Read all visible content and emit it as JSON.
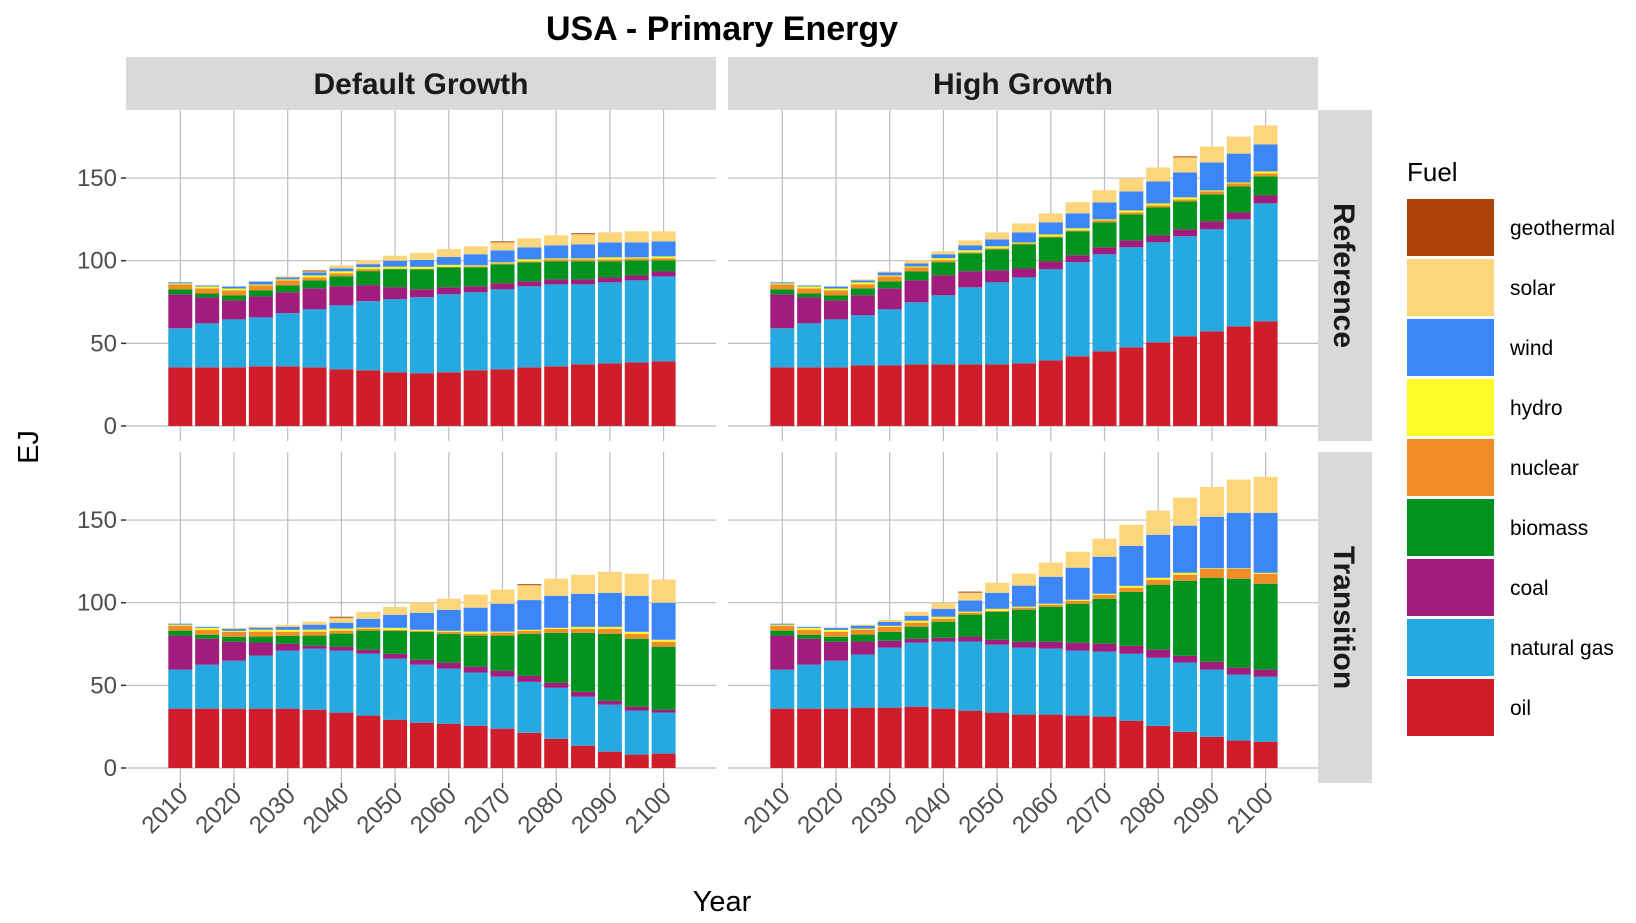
{
  "chart_data": {
    "type": "bar",
    "stacked": true,
    "title": "USA - Primary Energy",
    "xlabel": "Year",
    "ylabel": "EJ",
    "ylim": [
      0,
      190
    ],
    "yticks": [
      0,
      50,
      100,
      150
    ],
    "xticks": [
      2010,
      2020,
      2030,
      2040,
      2050,
      2060,
      2070,
      2080,
      2090,
      2100
    ],
    "grid": true,
    "legend": {
      "title": "Fuel",
      "position": "right",
      "entries": [
        {
          "key": "geothermal",
          "label": "geothermal",
          "color": "#ad440c"
        },
        {
          "key": "solar",
          "label": "solar",
          "color": "#fdd67b"
        },
        {
          "key": "wind",
          "label": "wind",
          "color": "#3d86f8"
        },
        {
          "key": "hydro",
          "label": "hydro",
          "color": "#fdfa28"
        },
        {
          "key": "nuclear",
          "label": "nuclear",
          "color": "#ef8e27"
        },
        {
          "key": "biomass",
          "label": "biomass",
          "color": "#00931d"
        },
        {
          "key": "coal",
          "label": "coal",
          "color": "#a11c7c"
        },
        {
          "key": "natural_gas",
          "label": "natural gas",
          "color": "#25a9e0"
        },
        {
          "key": "oil",
          "label": "oil",
          "color": "#cf1d2b"
        }
      ]
    },
    "stack_order_bottom_to_top": [
      "oil",
      "natural_gas",
      "coal",
      "biomass",
      "nuclear",
      "hydro",
      "wind",
      "solar",
      "geothermal"
    ],
    "columns": [
      "Default Growth",
      "High Growth"
    ],
    "rows": [
      "Reference",
      "Transition"
    ],
    "x": [
      2010,
      2015,
      2020,
      2025,
      2030,
      2035,
      2040,
      2045,
      2050,
      2055,
      2060,
      2065,
      2070,
      2075,
      2080,
      2085,
      2090,
      2095,
      2100
    ],
    "panels": [
      {
        "column": "Default Growth",
        "row": "Reference",
        "series": {
          "oil": [
            35.5,
            35.5,
            35.5,
            36.1,
            36.1,
            35.5,
            34.3,
            33.7,
            32.5,
            31.9,
            32.5,
            33.7,
            34.3,
            35.5,
            36.1,
            37.3,
            37.9,
            38.5,
            39.1
          ],
          "natural_gas": [
            23.6,
            26.6,
            29.0,
            29.6,
            32.1,
            35.1,
            38.7,
            41.8,
            44.2,
            46.0,
            47.2,
            47.2,
            48.4,
            49.0,
            49.6,
            48.4,
            49.0,
            49.6,
            51.4
          ],
          "coal": [
            20.6,
            15.7,
            11.5,
            12.7,
            12.7,
            12.7,
            11.5,
            9.7,
            7.3,
            4.8,
            4.2,
            3.6,
            3.6,
            3.0,
            3.0,
            3.0,
            3.0,
            3.0,
            3.0
          ],
          "biomass": [
            3.0,
            2.4,
            3.0,
            3.6,
            4.2,
            4.8,
            6.1,
            8.5,
            10.9,
            12.1,
            12.1,
            11.5,
            11.5,
            11.5,
            10.9,
            10.9,
            9.7,
            9.1,
            6.7
          ],
          "nuclear": [
            3.0,
            3.0,
            3.0,
            3.0,
            3.0,
            1.8,
            1.8,
            1.2,
            0.3,
            0.3,
            0.3,
            0.6,
            0.6,
            0.6,
            1.2,
            1.2,
            1.2,
            1.2,
            1.2
          ],
          "hydro": [
            0.6,
            1.2,
            1.2,
            0.6,
            0.6,
            1.2,
            1.2,
            1.2,
            1.2,
            1.2,
            1.2,
            0.6,
            0.6,
            1.2,
            0.6,
            0.6,
            1.2,
            0.6,
            1.2
          ],
          "wind": [
            0.6,
            0.6,
            1.2,
            1.8,
            1.2,
            1.8,
            1.8,
            1.8,
            3.6,
            4.2,
            4.8,
            6.7,
            7.3,
            7.3,
            7.9,
            8.5,
            9.1,
            9.1,
            9.1
          ],
          "solar": [
            0.0,
            0.0,
            0.0,
            0.0,
            0.6,
            0.6,
            1.8,
            2.4,
            3.0,
            4.2,
            4.8,
            4.8,
            4.8,
            5.4,
            6.1,
            6.1,
            6.1,
            6.7,
            6.1
          ],
          "geothermal": [
            0,
            0,
            0,
            0,
            0,
            0.6,
            0,
            0,
            0,
            0,
            0,
            0,
            0.6,
            0,
            0,
            0.6,
            0,
            0,
            0
          ]
        }
      },
      {
        "column": "High Growth",
        "row": "Reference",
        "series": {
          "oil": [
            35.5,
            35.5,
            35.5,
            36.7,
            36.7,
            37.3,
            37.3,
            37.3,
            37.3,
            37.9,
            39.7,
            42.2,
            45.2,
            47.6,
            50.6,
            54.3,
            57.3,
            60.3,
            63.3
          ],
          "natural_gas": [
            23.6,
            26.6,
            29.0,
            30.3,
            33.9,
            37.5,
            41.8,
            46.6,
            49.6,
            52.0,
            55.1,
            56.9,
            58.7,
            60.5,
            60.5,
            60.5,
            61.7,
            64.7,
            71.4
          ],
          "coal": [
            20.6,
            15.7,
            11.5,
            12.1,
            12.7,
            13.3,
            12.1,
            9.7,
            7.3,
            5.4,
            4.8,
            4.2,
            4.2,
            4.2,
            4.2,
            4.2,
            4.8,
            4.2,
            4.8
          ],
          "biomass": [
            3.0,
            2.4,
            3.0,
            4.2,
            4.2,
            5.4,
            7.9,
            10.9,
            12.7,
            14.5,
            14.5,
            14.5,
            15.1,
            15.7,
            16.9,
            16.9,
            16.3,
            15.7,
            11.5
          ],
          "nuclear": [
            3.0,
            3.0,
            3.0,
            2.4,
            3.0,
            2.4,
            1.2,
            0.6,
            0.6,
            0.6,
            0.6,
            0.6,
            1.2,
            1.2,
            1.2,
            1.2,
            1.8,
            1.8,
            1.8
          ],
          "hydro": [
            0.6,
            1.2,
            1.2,
            1.2,
            0.6,
            0.6,
            1.2,
            1.2,
            1.2,
            0.6,
            1.2,
            1.2,
            0.6,
            1.2,
            1.2,
            1.2,
            0.6,
            0.6,
            1.2
          ],
          "wind": [
            0.6,
            0.6,
            1.2,
            1.2,
            1.8,
            1.8,
            2.4,
            3.0,
            4.2,
            6.1,
            7.3,
            9.1,
            10.3,
            11.5,
            13.3,
            15.1,
            16.9,
            17.5,
            16.3
          ],
          "solar": [
            0.0,
            0.0,
            0.0,
            0.6,
            0.6,
            1.8,
            1.8,
            3.0,
            4.2,
            5.4,
            5.4,
            6.7,
            7.3,
            7.9,
            8.5,
            9.1,
            9.7,
            10.3,
            11.5
          ],
          "geothermal": [
            0,
            0,
            0,
            0,
            0,
            0,
            0,
            0,
            0,
            0,
            0,
            0,
            0,
            0,
            0,
            0.6,
            0,
            0,
            0
          ]
        }
      },
      {
        "column": "Default Growth",
        "row": "Transition",
        "series": {
          "oil": [
            35.9,
            35.9,
            35.9,
            35.9,
            35.9,
            35.3,
            33.5,
            31.7,
            29.2,
            27.4,
            26.8,
            25.6,
            23.8,
            21.3,
            17.7,
            13.5,
            9.9,
            8.1,
            8.7
          ],
          "natural_gas": [
            23.6,
            26.6,
            29.0,
            32.1,
            35.1,
            36.9,
            37.5,
            37.5,
            36.9,
            35.1,
            33.3,
            32.1,
            31.5,
            30.8,
            30.8,
            29.6,
            28.4,
            26.6,
            24.8
          ],
          "coal": [
            20.6,
            15.7,
            11.5,
            7.9,
            4.2,
            1.8,
            2.4,
            2.4,
            3.0,
            3.0,
            3.6,
            3.6,
            3.6,
            3.6,
            3.0,
            3.0,
            2.4,
            2.4,
            1.8
          ],
          "biomass": [
            3.0,
            2.4,
            3.0,
            3.6,
            4.8,
            6.1,
            7.9,
            11.5,
            13.9,
            16.9,
            17.5,
            18.8,
            21.2,
            25.5,
            30.3,
            35.7,
            40.5,
            41.1,
            38.1
          ],
          "nuclear": [
            3.0,
            3.0,
            3.0,
            3.0,
            2.4,
            2.4,
            1.8,
            1.2,
            0.6,
            0.6,
            1.2,
            1.2,
            1.8,
            1.8,
            2.4,
            2.4,
            3.0,
            3.0,
            3.0
          ],
          "hydro": [
            0.6,
            1.2,
            0.6,
            1.2,
            1.2,
            1.2,
            1.2,
            0.6,
            1.2,
            0.6,
            0.6,
            1.2,
            0.6,
            0.6,
            0.6,
            1.2,
            1.2,
            1.2,
            1.2
          ],
          "wind": [
            0.6,
            0.6,
            1.2,
            1.2,
            1.8,
            3.0,
            3.6,
            5.4,
            7.9,
            10.3,
            12.7,
            14.5,
            16.9,
            18.0,
            19.4,
            20.0,
            20.6,
            21.8,
            22.4
          ],
          "solar": [
            0.0,
            0.0,
            0.6,
            0.6,
            1.2,
            1.8,
            3.0,
            4.2,
            4.8,
            6.1,
            6.7,
            7.9,
            8.5,
            9.0,
            10.3,
            11.5,
            12.7,
            13.3,
            14.0
          ],
          "geothermal": [
            0,
            0,
            0,
            0,
            0,
            0,
            0.6,
            0,
            0,
            0,
            0,
            0,
            0,
            0.6,
            0,
            0,
            0,
            0,
            0
          ]
        }
      },
      {
        "column": "High Growth",
        "row": "Transition",
        "series": {
          "oil": [
            35.9,
            35.9,
            35.9,
            36.5,
            36.5,
            37.1,
            35.9,
            34.7,
            33.5,
            32.3,
            32.3,
            31.7,
            31.1,
            28.6,
            25.5,
            21.9,
            18.9,
            16.6,
            15.9
          ],
          "natural_gas": [
            23.6,
            26.6,
            29.0,
            32.1,
            36.3,
            38.7,
            40.5,
            41.8,
            41.1,
            40.5,
            39.9,
            39.3,
            39.3,
            40.5,
            41.2,
            41.8,
            40.6,
            39.9,
            39.3
          ],
          "coal": [
            20.6,
            15.7,
            11.5,
            7.9,
            4.2,
            2.4,
            2.4,
            3.0,
            3.0,
            3.6,
            4.2,
            4.8,
            4.8,
            4.8,
            4.9,
            4.2,
            4.8,
            4.2,
            4.3
          ],
          "biomass": [
            3.0,
            2.4,
            3.0,
            4.2,
            5.4,
            7.3,
            9.7,
            13.3,
            16.9,
            19.4,
            21.2,
            23.6,
            27.2,
            32.7,
            39.3,
            45.4,
            50.8,
            53.8,
            52.0
          ],
          "nuclear": [
            3.0,
            3.0,
            3.0,
            3.0,
            3.0,
            2.4,
            1.8,
            1.2,
            0.6,
            1.2,
            1.2,
            1.8,
            2.4,
            2.4,
            3.0,
            3.6,
            5.3,
            6.0,
            6.0
          ],
          "hydro": [
            0.6,
            1.2,
            1.2,
            0.6,
            0.6,
            1.2,
            1.2,
            0.6,
            1.2,
            0.6,
            0.6,
            0.6,
            0.6,
            1.2,
            1.2,
            1.2,
            0.4,
            0.3,
            0.6
          ],
          "wind": [
            0.6,
            0.6,
            1.2,
            1.8,
            2.4,
            3.0,
            4.8,
            6.7,
            9.7,
            12.7,
            16.3,
            19.4,
            22.4,
            24.2,
            26.0,
            28.5,
            31.2,
            33.6,
            36.3
          ],
          "solar": [
            0.0,
            0.0,
            0.0,
            0.6,
            1.2,
            2.4,
            3.6,
            4.8,
            6.1,
            7.3,
            8.5,
            9.7,
            10.9,
            12.7,
            14.6,
            16.9,
            18.0,
            20.1,
            21.8
          ],
          "geothermal": [
            0,
            0,
            0,
            0,
            0,
            0,
            0,
            0.6,
            0,
            0,
            0,
            0,
            0,
            0,
            0,
            0,
            0,
            0,
            0
          ]
        }
      }
    ]
  }
}
